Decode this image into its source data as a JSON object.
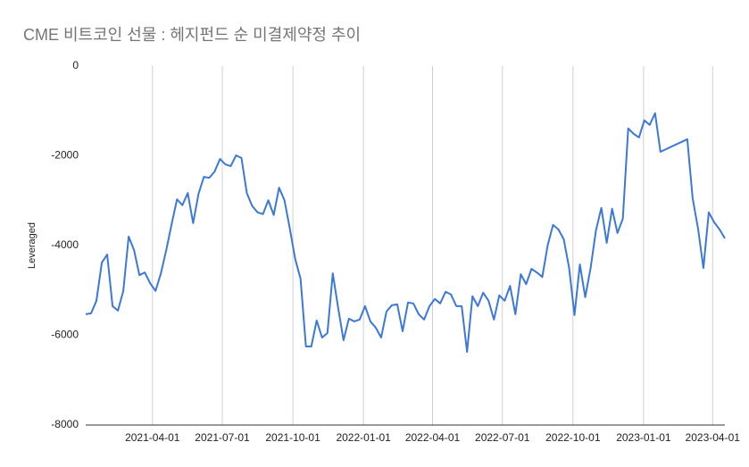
{
  "chart_data": {
    "type": "line",
    "title": "CME 비트코인 선물 : 헤지펀드 순 미결제약정 추이",
    "y_label": "Leveraged",
    "x": [
      "2021-01-04",
      "2021-01-11",
      "2021-01-18",
      "2021-01-25",
      "2021-02-01",
      "2021-02-08",
      "2021-02-15",
      "2021-02-22",
      "2021-03-01",
      "2021-03-08",
      "2021-03-15",
      "2021-03-22",
      "2021-03-29",
      "2021-04-05",
      "2021-04-12",
      "2021-04-19",
      "2021-04-26",
      "2021-05-03",
      "2021-05-10",
      "2021-05-17",
      "2021-05-24",
      "2021-05-31",
      "2021-06-07",
      "2021-06-14",
      "2021-06-21",
      "2021-06-28",
      "2021-07-05",
      "2021-07-12",
      "2021-07-19",
      "2021-07-26",
      "2021-08-02",
      "2021-08-09",
      "2021-08-16",
      "2021-08-23",
      "2021-08-30",
      "2021-09-06",
      "2021-09-13",
      "2021-09-20",
      "2021-09-27",
      "2021-10-04",
      "2021-10-11",
      "2021-10-18",
      "2021-10-25",
      "2021-11-01",
      "2021-11-08",
      "2021-11-15",
      "2021-11-22",
      "2021-11-29",
      "2021-12-06",
      "2021-12-13",
      "2021-12-20",
      "2021-12-27",
      "2022-01-03",
      "2022-01-10",
      "2022-01-17",
      "2022-01-24",
      "2022-01-31",
      "2022-02-07",
      "2022-02-14",
      "2022-02-21",
      "2022-02-28",
      "2022-03-07",
      "2022-03-14",
      "2022-03-21",
      "2022-03-28",
      "2022-04-04",
      "2022-04-11",
      "2022-04-18",
      "2022-04-25",
      "2022-05-02",
      "2022-05-09",
      "2022-05-16",
      "2022-05-23",
      "2022-05-30",
      "2022-06-06",
      "2022-06-13",
      "2022-06-20",
      "2022-06-27",
      "2022-07-04",
      "2022-07-11",
      "2022-07-18",
      "2022-07-25",
      "2022-08-01",
      "2022-08-08",
      "2022-08-15",
      "2022-08-22",
      "2022-08-29",
      "2022-09-05",
      "2022-09-12",
      "2022-09-19",
      "2022-09-26",
      "2022-10-03",
      "2022-10-10",
      "2022-10-17",
      "2022-10-24",
      "2022-10-31",
      "2022-11-07",
      "2022-11-14",
      "2022-11-21",
      "2022-11-28",
      "2022-12-05",
      "2022-12-12",
      "2022-12-19",
      "2022-12-26",
      "2023-01-02",
      "2023-01-09",
      "2023-01-16",
      "2023-01-23",
      "2023-02-27",
      "2023-03-06",
      "2023-03-13",
      "2023-03-20",
      "2023-03-27",
      "2023-04-03",
      "2023-04-10",
      "2023-04-17"
    ],
    "series": [
      {
        "name": "Leveraged",
        "color": "#3c78d8",
        "values": [
          -5530,
          -5510,
          -5230,
          -4380,
          -4200,
          -5350,
          -5450,
          -5010,
          -3800,
          -4100,
          -4660,
          -4600,
          -4840,
          -5010,
          -4620,
          -4100,
          -3520,
          -2970,
          -3100,
          -2830,
          -3500,
          -2850,
          -2470,
          -2490,
          -2350,
          -2070,
          -2190,
          -2230,
          -1990,
          -2050,
          -2830,
          -3120,
          -3260,
          -3300,
          -2990,
          -3320,
          -2710,
          -2990,
          -3620,
          -4300,
          -4740,
          -6250,
          -6250,
          -5670,
          -6050,
          -5950,
          -4620,
          -5390,
          -6110,
          -5630,
          -5690,
          -5650,
          -5350,
          -5690,
          -5830,
          -6050,
          -5470,
          -5330,
          -5310,
          -5910,
          -5270,
          -5290,
          -5530,
          -5650,
          -5350,
          -5190,
          -5290,
          -5030,
          -5090,
          -5350,
          -5350,
          -6370,
          -5130,
          -5350,
          -5050,
          -5230,
          -5650,
          -5110,
          -5230,
          -4900,
          -5530,
          -4640,
          -4860,
          -4520,
          -4600,
          -4700,
          -4000,
          -3540,
          -3640,
          -3860,
          -4500,
          -5550,
          -4420,
          -5150,
          -4500,
          -3660,
          -3160,
          -3940,
          -3180,
          -3720,
          -3400,
          -1390,
          -1510,
          -1590,
          -1210,
          -1310,
          -1050,
          -1910,
          -1630,
          -2950,
          -3620,
          -4500,
          -3260,
          -3480,
          -3640,
          -3840
        ]
      }
    ],
    "xlim": [
      "2021-01-04",
      "2023-04-17"
    ],
    "xticks": [
      "2021-04-01",
      "2021-07-01",
      "2021-10-01",
      "2022-01-01",
      "2022-04-01",
      "2022-07-01",
      "2022-10-01",
      "2023-01-01",
      "2023-04-01"
    ],
    "ylim": [
      -8000,
      0
    ],
    "yticks": [
      0,
      -2000,
      -4000,
      -6000,
      -8000
    ],
    "grid": "x"
  }
}
